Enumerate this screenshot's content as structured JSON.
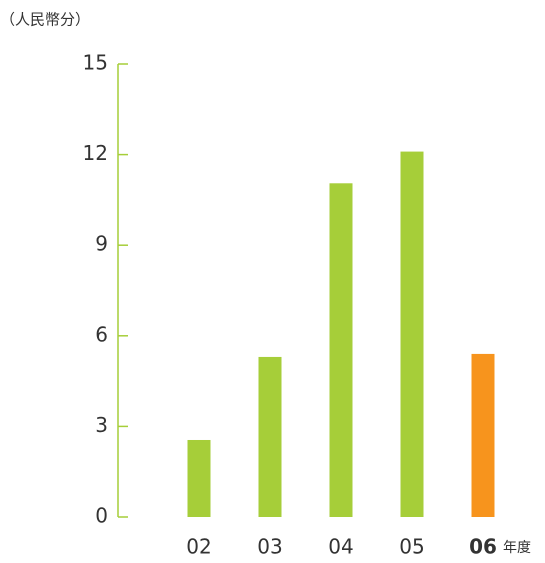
{
  "chart_data": {
    "type": "bar",
    "title": "（人民幣分）",
    "x_label": "年度",
    "categories": [
      "02",
      "03",
      "04",
      "05",
      "06"
    ],
    "values": [
      2.55,
      5.3,
      11.05,
      12.1,
      5.4
    ],
    "color": "#a6ce39",
    "colors": [
      "#a6ce39",
      "#a6ce39",
      "#a6ce39",
      "#a6ce39",
      "#f7941d"
    ],
    "ylim": [
      0,
      15
    ],
    "yticks": [
      0,
      3,
      6,
      9,
      12,
      15
    ],
    "grid": false
  }
}
